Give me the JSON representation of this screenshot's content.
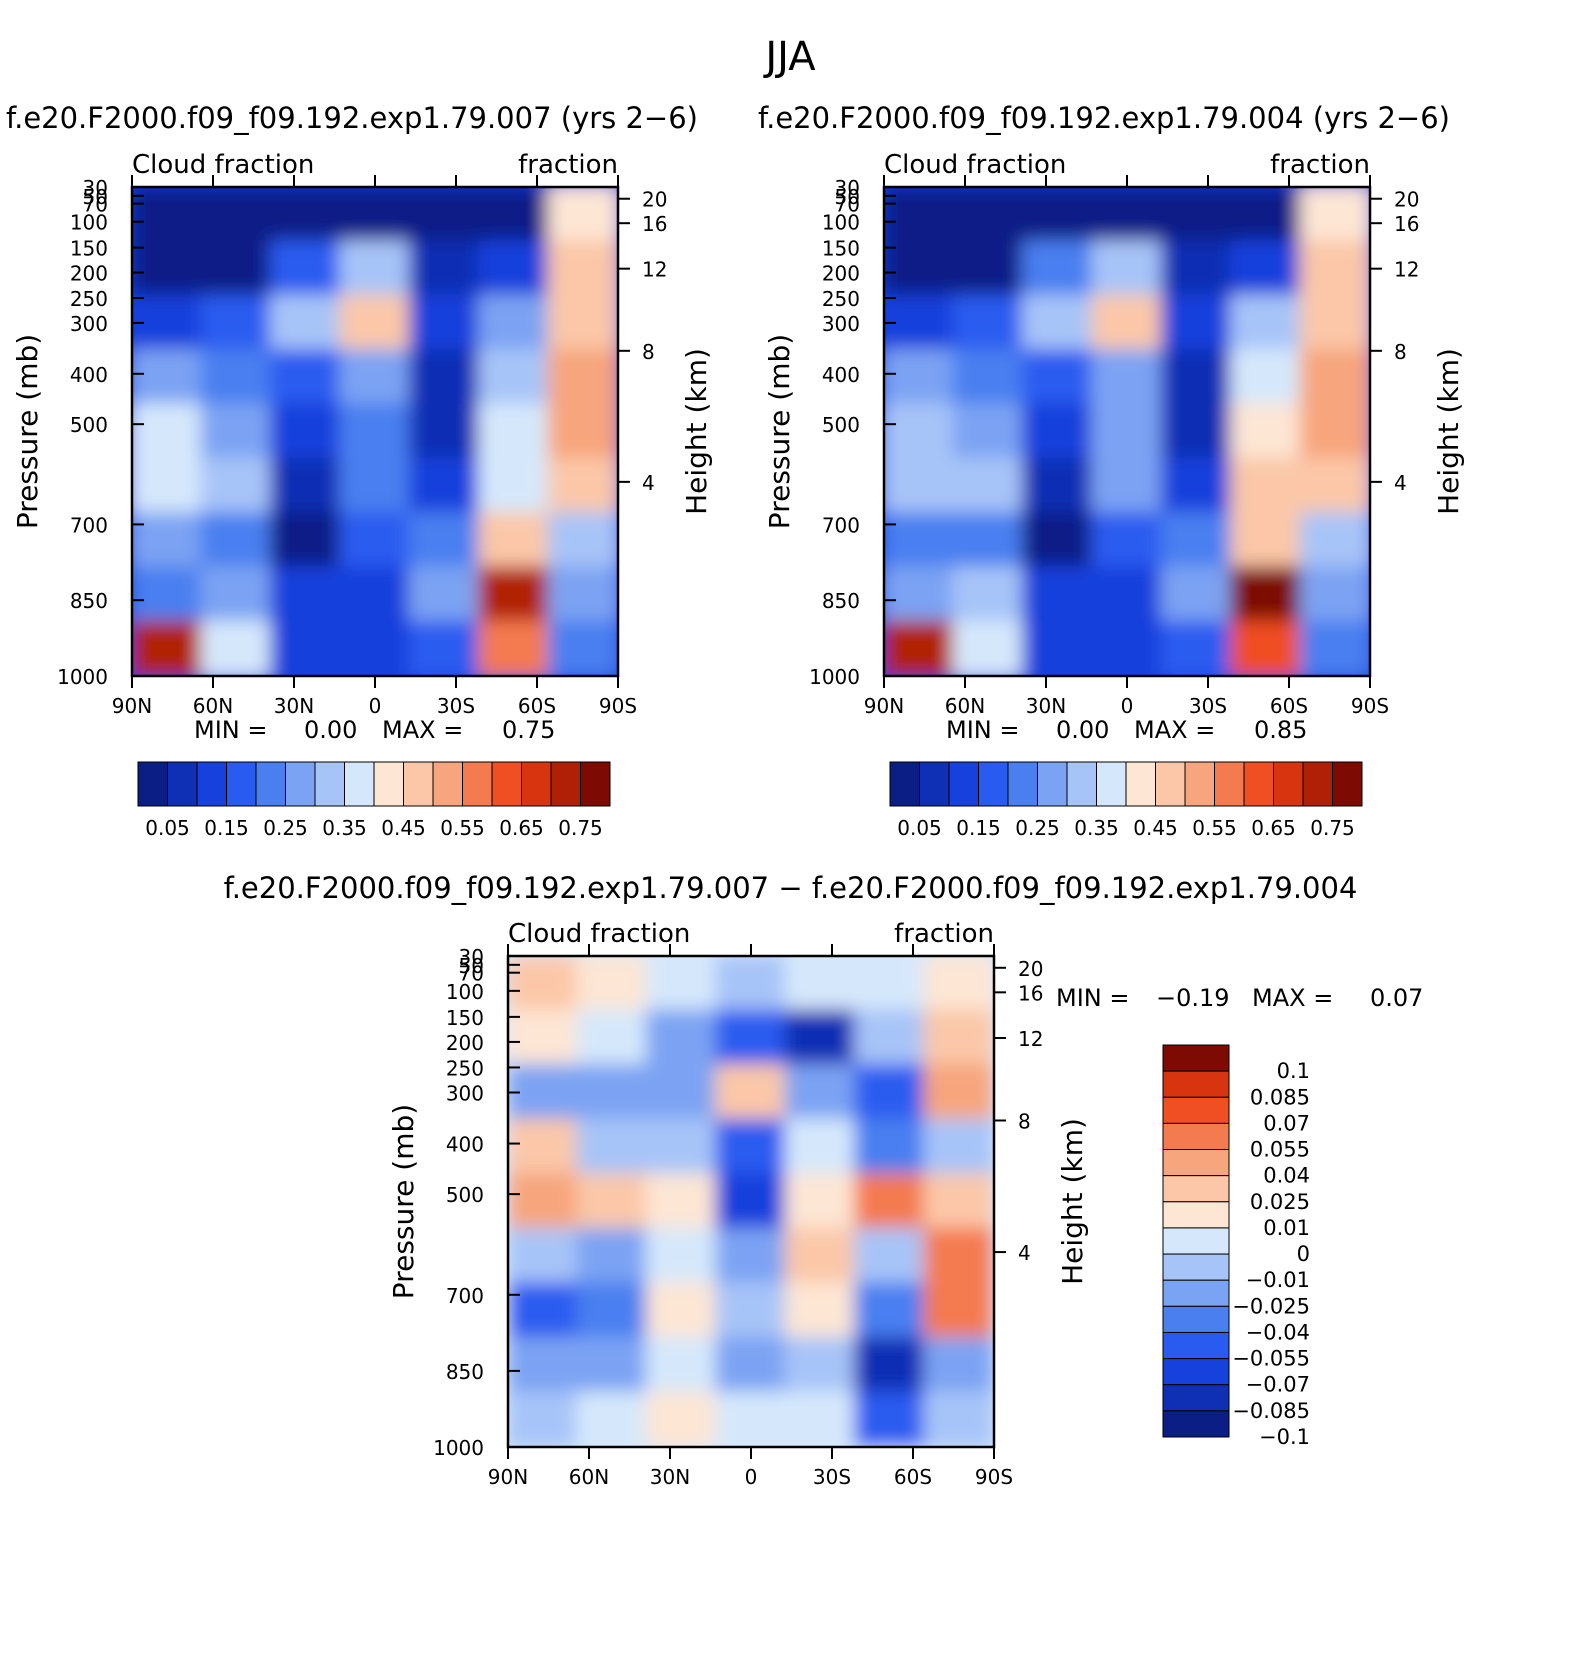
{
  "title": "JJA",
  "colors": {
    "sequential": [
      "#0a1e86",
      "#0f2fb4",
      "#1741dc",
      "#2a5bf0",
      "#4a7ff0",
      "#7ba3f3",
      "#a7c4f8",
      "#d5e8fb",
      "#fde6d4",
      "#fbc7a8",
      "#f7a57c",
      "#f47a4f",
      "#f04e23",
      "#d8340f",
      "#b02006",
      "#7d0a03"
    ],
    "diverging": [
      "#0a1e86",
      "#0f2fb4",
      "#1741dc",
      "#2a5bf0",
      "#4a7ff0",
      "#7ba3f3",
      "#a7c4f8",
      "#d5e8fb",
      "#fde6d4",
      "#fbc7a8",
      "#f7a57c",
      "#f47a4f",
      "#f04e23",
      "#d8340f",
      "#7d0a03"
    ]
  },
  "panels": [
    {
      "title": "f.e20.F2000.f09_f09.192.exp1.79.007 (yrs 2−6)",
      "left_label": "Cloud fraction",
      "right_label": "fraction",
      "min_label": "MIN =",
      "min_value": "0.00",
      "max_label": "MAX =",
      "max_value": "0.75"
    },
    {
      "title": "f.e20.F2000.f09_f09.192.exp1.79.004 (yrs 2−6)",
      "left_label": "Cloud fraction",
      "right_label": "fraction",
      "min_label": "MIN =",
      "min_value": "0.00",
      "max_label": "MAX =",
      "max_value": "0.85"
    },
    {
      "title": "f.e20.F2000.f09_f09.192.exp1.79.007 − f.e20.F2000.f09_f09.192.exp1.79.004",
      "left_label": "Cloud fraction",
      "right_label": "fraction",
      "min_label": "MIN =",
      "min_value": "−0.19",
      "max_label": "MAX =",
      "max_value": "0.07"
    }
  ],
  "axes": {
    "ylabel": "Pressure (mb)",
    "ylabel_right": "Height (km)",
    "pressure_ticks": [
      "30",
      "50",
      "70",
      "100",
      "150",
      "200",
      "250",
      "300",
      "400",
      "500",
      "700",
      "850",
      "1000"
    ],
    "height_ticks": [
      "20",
      "16",
      "12",
      "8",
      "4"
    ],
    "lat_ticks": [
      "90N",
      "60N",
      "30N",
      "0",
      "30S",
      "60S",
      "90S"
    ]
  },
  "colorbars": {
    "sequential_labels": [
      "0.05",
      "0.15",
      "0.25",
      "0.35",
      "0.45",
      "0.55",
      "0.65",
      "0.75"
    ],
    "diverging_labels": [
      "0.1",
      "0.085",
      "0.07",
      "0.055",
      "0.04",
      "0.025",
      "0.01",
      "0",
      "−0.01",
      "−0.025",
      "−0.04",
      "−0.055",
      "−0.07",
      "−0.085",
      "−0.1"
    ]
  },
  "chart_data": [
    {
      "type": "heatmap",
      "title": "f.e20.F2000.f09_f09.192.exp1.79.007 (yrs 2−6)",
      "xlabel": "",
      "ylabel": "Pressure (mb)",
      "ylabel_right": "Height (km)",
      "x": [
        "90N",
        "60N",
        "30N",
        "0",
        "30S",
        "60S",
        "90S"
      ],
      "y": [
        30,
        50,
        70,
        100,
        150,
        200,
        250,
        300,
        400,
        500,
        700,
        850,
        1000
      ],
      "levels": [
        0.05,
        0.1,
        0.15,
        0.2,
        0.25,
        0.3,
        0.35,
        0.4,
        0.45,
        0.5,
        0.55,
        0.6,
        0.65,
        0.7,
        0.75
      ],
      "values": [
        [
          0.0,
          0.0,
          0.0,
          0.0,
          0.0,
          0.0,
          0.4
        ],
        [
          0.0,
          0.02,
          0.15,
          0.3,
          0.05,
          0.1,
          0.45
        ],
        [
          0.1,
          0.15,
          0.3,
          0.45,
          0.1,
          0.25,
          0.45
        ],
        [
          0.25,
          0.2,
          0.15,
          0.25,
          0.05,
          0.3,
          0.5
        ],
        [
          0.35,
          0.25,
          0.1,
          0.2,
          0.05,
          0.35,
          0.5
        ],
        [
          0.35,
          0.3,
          0.05,
          0.2,
          0.1,
          0.35,
          0.45
        ],
        [
          0.25,
          0.2,
          0.0,
          0.15,
          0.2,
          0.45,
          0.3
        ],
        [
          0.2,
          0.25,
          0.1,
          0.1,
          0.25,
          0.7,
          0.25
        ],
        [
          0.7,
          0.35,
          0.1,
          0.1,
          0.15,
          0.55,
          0.2
        ]
      ],
      "min": 0.0,
      "max": 0.75
    },
    {
      "type": "heatmap",
      "title": "f.e20.F2000.f09_f09.192.exp1.79.004 (yrs 2−6)",
      "xlabel": "",
      "ylabel": "Pressure (mb)",
      "ylabel_right": "Height (km)",
      "x": [
        "90N",
        "60N",
        "30N",
        "0",
        "30S",
        "60S",
        "90S"
      ],
      "y": [
        30,
        50,
        70,
        100,
        150,
        200,
        250,
        300,
        400,
        500,
        700,
        850,
        1000
      ],
      "levels": [
        0.05,
        0.1,
        0.15,
        0.2,
        0.25,
        0.3,
        0.35,
        0.4,
        0.45,
        0.5,
        0.55,
        0.6,
        0.65,
        0.7,
        0.75
      ],
      "values": [
        [
          0.0,
          0.0,
          0.0,
          0.0,
          0.0,
          0.0,
          0.4
        ],
        [
          0.0,
          0.02,
          0.2,
          0.3,
          0.05,
          0.1,
          0.45
        ],
        [
          0.1,
          0.15,
          0.3,
          0.45,
          0.1,
          0.3,
          0.45
        ],
        [
          0.25,
          0.2,
          0.15,
          0.25,
          0.05,
          0.35,
          0.5
        ],
        [
          0.3,
          0.25,
          0.1,
          0.25,
          0.05,
          0.4,
          0.5
        ],
        [
          0.3,
          0.3,
          0.05,
          0.25,
          0.1,
          0.45,
          0.45
        ],
        [
          0.2,
          0.2,
          0.0,
          0.15,
          0.2,
          0.45,
          0.3
        ],
        [
          0.25,
          0.3,
          0.1,
          0.1,
          0.25,
          0.75,
          0.25
        ],
        [
          0.7,
          0.35,
          0.1,
          0.1,
          0.15,
          0.6,
          0.2
        ]
      ],
      "min": 0.0,
      "max": 0.85
    },
    {
      "type": "heatmap",
      "title": "f.e20.F2000.f09_f09.192.exp1.79.007 − f.e20.F2000.f09_f09.192.exp1.79.004",
      "xlabel": "",
      "ylabel": "Pressure (mb)",
      "ylabel_right": "Height (km)",
      "x": [
        "90N",
        "60N",
        "30N",
        "0",
        "30S",
        "60S",
        "90S"
      ],
      "y": [
        30,
        50,
        70,
        100,
        150,
        200,
        250,
        300,
        400,
        500,
        700,
        850,
        1000
      ],
      "levels": [
        -0.1,
        -0.085,
        -0.07,
        -0.055,
        -0.04,
        -0.025,
        -0.01,
        0,
        0.01,
        0.025,
        0.04,
        0.055,
        0.07,
        0.085,
        0.1
      ],
      "values": [
        [
          0.01,
          0.005,
          -0.005,
          -0.02,
          -0.01,
          -0.005,
          0.0
        ],
        [
          0.0,
          -0.01,
          -0.03,
          -0.06,
          -0.1,
          -0.02,
          0.02
        ],
        [
          -0.03,
          -0.04,
          -0.03,
          0.02,
          -0.04,
          -0.07,
          0.03
        ],
        [
          0.02,
          -0.02,
          -0.02,
          -0.06,
          -0.01,
          -0.05,
          -0.02
        ],
        [
          0.03,
          0.01,
          0.0,
          -0.08,
          0.0,
          0.04,
          0.02
        ],
        [
          -0.02,
          -0.03,
          -0.01,
          -0.03,
          0.01,
          -0.02,
          0.04
        ],
        [
          -0.06,
          -0.05,
          0.0,
          -0.02,
          0.0,
          -0.05,
          0.04
        ],
        [
          -0.04,
          -0.03,
          -0.01,
          -0.03,
          -0.02,
          -0.09,
          -0.03
        ],
        [
          -0.02,
          -0.01,
          0.0,
          -0.01,
          -0.01,
          -0.06,
          -0.02
        ]
      ],
      "min": -0.19,
      "max": 0.07
    }
  ]
}
